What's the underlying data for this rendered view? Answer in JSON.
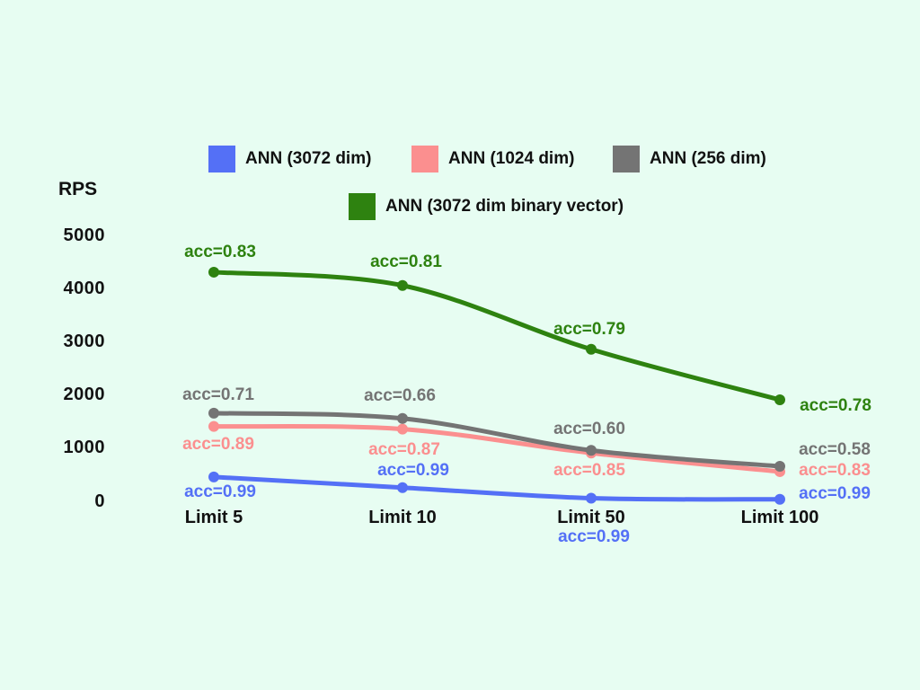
{
  "chart_data": {
    "type": "line",
    "title": "",
    "ylabel": "RPS",
    "xlabel": "",
    "categories": [
      "Limit 5",
      "Limit 10",
      "Limit 50",
      "Limit 100"
    ],
    "yticks": [
      5000,
      4000,
      3000,
      2000,
      1000,
      0
    ],
    "ylim": [
      0,
      5000
    ],
    "grid": false,
    "legend_position": "top-center",
    "background_color": "#e7fdf2",
    "series": [
      {
        "name": "ANN (3072 dim)",
        "color": "#5470f6",
        "values": [
          450,
          250,
          50,
          30
        ],
        "acc_labels": [
          "acc=0.99",
          "acc=0.99",
          "acc=0.99",
          "acc=0.99"
        ]
      },
      {
        "name": "ANN (1024 dim)",
        "color": "#fb8f8f",
        "values": [
          1400,
          1350,
          900,
          550
        ],
        "acc_labels": [
          "acc=0.89",
          "acc=0.87",
          "acc=0.85",
          "acc=0.83"
        ]
      },
      {
        "name": "ANN (256 dim)",
        "color": "#747474",
        "values": [
          1650,
          1550,
          950,
          650
        ],
        "acc_labels": [
          "acc=0.71",
          "acc=0.66",
          "acc=0.60",
          "acc=0.58"
        ]
      },
      {
        "name": "ANN (3072 dim binary vector)",
        "color": "#2e8210",
        "values": [
          4300,
          4050,
          2850,
          1900
        ],
        "acc_labels": [
          "acc=0.83",
          "acc=0.81",
          "acc=0.79",
          "acc=0.78"
        ]
      }
    ]
  }
}
